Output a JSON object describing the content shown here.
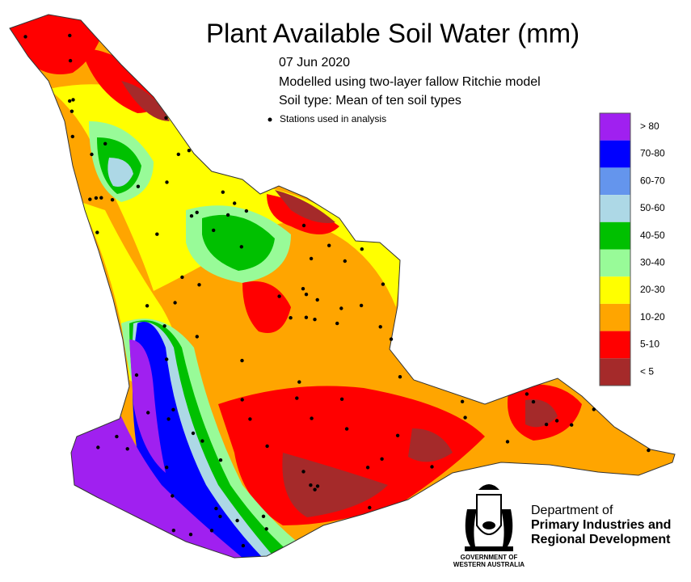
{
  "title": "Plant Available Soil Water (mm)",
  "subtitle": [
    "07 Jun 2020",
    "Modelled using two-layer fallow Ritchie model",
    "Soil type: Mean of ten soil types"
  ],
  "stations_label": "Stations used in analysis",
  "legend": [
    {
      "label": "> 80",
      "color": "#a020f0"
    },
    {
      "label": "70-80",
      "color": "#0000ff"
    },
    {
      "label": "60-70",
      "color": "#6495ed"
    },
    {
      "label": "50-60",
      "color": "#add8e6"
    },
    {
      "label": "40-50",
      "color": "#00c000"
    },
    {
      "label": "30-40",
      "color": "#98fb98"
    },
    {
      "label": "20-30",
      "color": "#ffff00"
    },
    {
      "label": "10-20",
      "color": "#ffa500"
    },
    {
      "label": "5-10",
      "color": "#ff0000"
    },
    {
      "label": "< 5",
      "color": "#a52a2a"
    }
  ],
  "department": [
    "Department of",
    "Primary Industries and",
    "Regional Development"
  ],
  "government": [
    "GOVERNMENT OF",
    "WESTERN AUSTRALIA"
  ]
}
